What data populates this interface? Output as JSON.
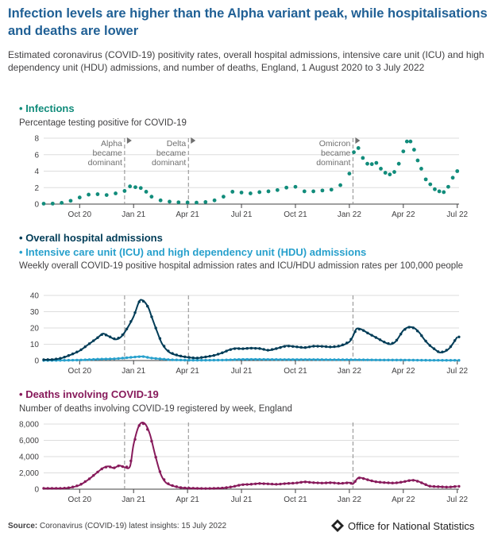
{
  "title": "Infection levels are higher than the Alpha variant peak, while hospitalisations and deaths are lower",
  "subtitle": "Estimated coronavirus (COVID-19) positivity rates, overall hospital admissions, intensive care unit (ICU) and high dependency unit (HDU) admissions, and number of deaths, England, 1 August 2020 to 3 July 2022",
  "colors": {
    "title": "#206095",
    "infections": "#118C7B",
    "admissions": "#003C57",
    "icu": "#27A0CC",
    "deaths": "#871A5B",
    "axis": "#414042",
    "grid": "#dddddd",
    "annotation_line": "#8c8c8c"
  },
  "x_axis": {
    "ticks": [
      "Oct 20",
      "Jan 21",
      "Apr 21",
      "Jul 21",
      "Oct 21",
      "Jan 22",
      "Apr 22",
      "Jul 22"
    ],
    "tick_months": [
      2,
      5,
      8,
      11,
      14,
      17,
      20,
      23
    ],
    "range_months": [
      0,
      23.1
    ],
    "month_origin": "2020-08-01"
  },
  "annotations": [
    {
      "month": 4.5,
      "lines": [
        "Alpha",
        "became",
        "dominant"
      ]
    },
    {
      "month": 8.05,
      "lines": [
        "Delta",
        "became",
        "dominant"
      ]
    },
    {
      "month": 17.2,
      "lines": [
        "Omicron",
        "became",
        "dominant"
      ]
    }
  ],
  "sections": {
    "infections": {
      "title": "Infections",
      "subtitle": "Percentage testing positive for COVID-19"
    },
    "admissions": {
      "title": "Overall hospital admissions",
      "title2": "Intensive care unit (ICU) and high dependency unit (HDU) admissions",
      "subtitle": "Weekly overall COVID-19 positive hospital admission rates and ICU/HDU admission rates per 100,000 people"
    },
    "deaths": {
      "title": "Deaths involving COVID-19",
      "subtitle": "Number of deaths involving COVID-19 registered by week, England"
    }
  },
  "chart_data": [
    {
      "type": "scatter",
      "name": "Infections",
      "ylim": [
        0,
        8
      ],
      "yticks": [
        0,
        2,
        4,
        6,
        8
      ],
      "x": [
        0,
        0.5,
        1,
        1.5,
        2,
        2.5,
        3,
        3.5,
        4,
        4.5,
        4.8,
        5.1,
        5.4,
        5.7,
        6,
        6.5,
        7,
        7.5,
        8,
        8.5,
        9,
        9.5,
        10,
        10.5,
        11,
        11.5,
        12,
        12.5,
        13,
        13.5,
        14,
        14.5,
        15,
        15.5,
        16,
        16.5,
        17,
        17.25,
        17.5,
        17.75,
        18,
        18.25,
        18.5,
        18.75,
        19,
        19.25,
        19.5,
        19.75,
        20,
        20.2,
        20.4,
        20.6,
        20.8,
        21,
        21.25,
        21.5,
        21.75,
        22,
        22.25,
        22.5,
        22.75,
        23
      ],
      "y": [
        0.05,
        0.06,
        0.15,
        0.4,
        0.8,
        1.15,
        1.2,
        1.1,
        1.3,
        1.6,
        2.15,
        2.05,
        1.95,
        1.5,
        0.9,
        0.45,
        0.3,
        0.22,
        0.2,
        0.18,
        0.25,
        0.45,
        0.9,
        1.5,
        1.4,
        1.3,
        1.45,
        1.55,
        1.7,
        2.0,
        2.1,
        1.55,
        1.55,
        1.65,
        1.75,
        2.3,
        3.7,
        6.3,
        6.8,
        5.6,
        4.9,
        4.85,
        5.0,
        4.3,
        3.8,
        3.6,
        3.9,
        4.9,
        6.4,
        7.6,
        7.6,
        6.6,
        5.3,
        4.3,
        3.0,
        2.4,
        1.8,
        1.55,
        1.45,
        2.1,
        3.2,
        4.0
      ]
    },
    {
      "type": "line",
      "name": "Overall hospital admissions",
      "ylim": [
        0,
        40
      ],
      "yticks": [
        0,
        10,
        20,
        30,
        40
      ],
      "x": [
        0,
        0.5,
        1,
        1.5,
        2,
        2.5,
        3,
        3.3,
        3.6,
        4,
        4.3,
        4.6,
        5,
        5.3,
        5.5,
        5.8,
        6,
        6.3,
        6.6,
        7,
        7.5,
        8,
        8.5,
        9,
        9.5,
        10,
        10.3,
        10.7,
        11,
        11.5,
        12,
        12.5,
        13,
        13.5,
        14,
        14.5,
        15,
        15.5,
        16,
        16.5,
        17,
        17.2,
        17.4,
        17.7,
        18,
        18.5,
        19,
        19.3,
        19.6,
        20,
        20.3,
        20.6,
        20.9,
        21.2,
        21.5,
        21.8,
        22,
        22.3,
        22.6,
        23
      ],
      "y": [
        0.5,
        0.6,
        1.5,
        3.5,
        6,
        10,
        14,
        16.5,
        15,
        13,
        14.5,
        19,
        27,
        36,
        37,
        33,
        27,
        18,
        10,
        5,
        3,
        2,
        1.5,
        2.2,
        3.2,
        5,
        6.5,
        7.5,
        7.2,
        7.6,
        7.4,
        6.3,
        7.5,
        9,
        8.5,
        7.9,
        8.8,
        8.7,
        8.3,
        9,
        11.5,
        15,
        19.5,
        19,
        17,
        14,
        11,
        10,
        12,
        18.5,
        20.5,
        20,
        17,
        12.5,
        9,
        6.5,
        5,
        5.5,
        8,
        14.5
      ]
    },
    {
      "type": "line",
      "name": "Intensive care unit (ICU) and high dependency unit (HDU) admissions",
      "ylim": [
        0,
        40
      ],
      "x": [
        0,
        1,
        2,
        3,
        4,
        5,
        5.5,
        6,
        7,
        8,
        9,
        10,
        11,
        12,
        13,
        14,
        15,
        16,
        17,
        18,
        19,
        20,
        21,
        22,
        23
      ],
      "y": [
        0.05,
        0.1,
        0.3,
        0.8,
        1.1,
        2.1,
        2.5,
        1.5,
        0.5,
        0.2,
        0.2,
        0.3,
        0.7,
        0.7,
        0.6,
        0.6,
        0.6,
        0.5,
        0.5,
        0.4,
        0.3,
        0.3,
        0.2,
        0.15,
        0.15
      ]
    },
    {
      "type": "line",
      "name": "Deaths involving COVID-19",
      "ylim": [
        0,
        8000
      ],
      "yticks": [
        0,
        2000,
        4000,
        6000,
        8000
      ],
      "x": [
        0,
        1,
        1.5,
        2,
        2.5,
        3,
        3.3,
        3.6,
        3.9,
        4.2,
        4.5,
        4.8,
        5.0,
        5.3,
        5.6,
        5.9,
        6.2,
        6.5,
        6.8,
        7.2,
        7.6,
        8,
        8.5,
        9,
        9.5,
        10,
        10.5,
        11,
        11.5,
        12,
        12.5,
        13,
        13.5,
        14,
        14.5,
        15,
        15.5,
        16,
        16.5,
        17,
        17.2,
        17.5,
        17.8,
        18.1,
        18.5,
        19,
        19.5,
        20,
        20.3,
        20.6,
        20.9,
        21.2,
        21.5,
        22,
        22.5,
        23
      ],
      "y": [
        100,
        100,
        200,
        500,
        1200,
        2100,
        2600,
        2800,
        2600,
        2900,
        2700,
        2800,
        5500,
        7800,
        8100,
        6800,
        4200,
        1900,
        800,
        400,
        200,
        130,
        100,
        80,
        100,
        150,
        300,
        550,
        600,
        700,
        650,
        600,
        700,
        750,
        900,
        800,
        750,
        800,
        700,
        800,
        650,
        1400,
        1300,
        1100,
        900,
        800,
        750,
        900,
        1050,
        1100,
        900,
        600,
        350,
        300,
        250,
        350
      ]
    }
  ],
  "footer": {
    "source_label": "Source:",
    "source_text": "Coronavirus (COVID-19) latest insights: 15 July 2022"
  },
  "logo": {
    "text": "Office for National Statistics"
  }
}
